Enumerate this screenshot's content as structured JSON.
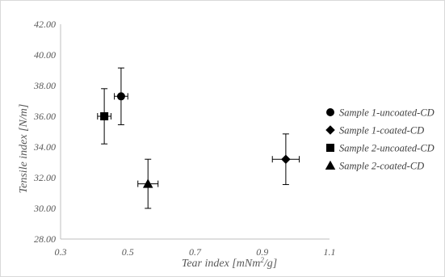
{
  "chart_data": {
    "type": "scatter",
    "title": "",
    "xlabel_main": "Tear index [mNm",
    "xlabel_sup": "2",
    "xlabel_end": "/g]",
    "ylabel": "Tensile index [N/m]",
    "xlim": [
      0.3,
      1.1
    ],
    "ylim": [
      28.0,
      42.0
    ],
    "xticks": [
      0.3,
      0.5,
      0.7,
      0.9,
      1.1
    ],
    "xtick_labels": [
      "0.3",
      "0.5",
      "0.7",
      "0.9",
      "1.1"
    ],
    "yticks": [
      28,
      30,
      32,
      34,
      36,
      38,
      40,
      42
    ],
    "ytick_labels": [
      "28.00",
      "30.00",
      "32.00",
      "34.00",
      "36.00",
      "38.00",
      "40.00",
      "42.00"
    ],
    "grid": false,
    "legend_position": "right",
    "marker_color": "#000000",
    "series": [
      {
        "name": "Sample 1-uncoated-CD",
        "marker": "circle",
        "x": 0.48,
        "y": 37.3,
        "x_err": 0.02,
        "y_err": 1.85
      },
      {
        "name": "Sample 1-coated-CD",
        "marker": "diamond",
        "x": 0.97,
        "y": 33.2,
        "x_err": 0.04,
        "y_err": 1.65
      },
      {
        "name": "Sample 2-uncoated-CD",
        "marker": "square",
        "x": 0.43,
        "y": 36.0,
        "x_err": 0.02,
        "y_err": 1.8
      },
      {
        "name": "Sample 2-coated-CD",
        "marker": "triangle",
        "x": 0.56,
        "y": 31.6,
        "x_err": 0.03,
        "y_err": 1.6
      }
    ]
  }
}
